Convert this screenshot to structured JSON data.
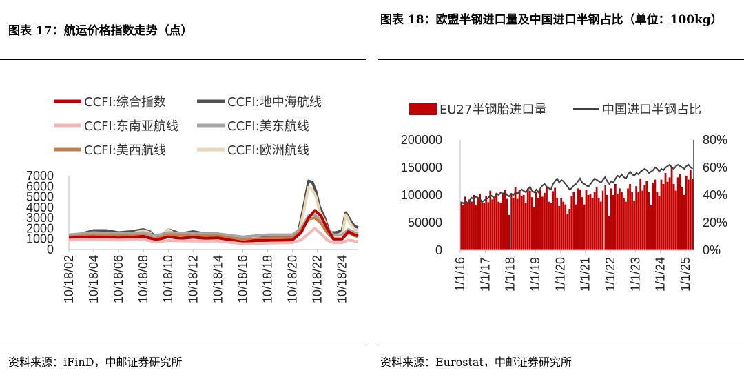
{
  "titles": {
    "left": "图表 17：航运价格指数走势（点）",
    "right": "图表 18：欧盟半钢进口量及中国进口半钢占比（单位：100kg）"
  },
  "sources": {
    "left": "资料来源：iFinD，中邮证券研究所",
    "right": "资料来源：Eurostat，中邮证券研究所"
  },
  "colors": {
    "ccfi_composite": "#c00000",
    "ccfi_med": "#505050",
    "ccfi_sea": "#f2b8b8",
    "ccfi_useast": "#a6a6a6",
    "ccfi_uswest": "#c0804a",
    "ccfi_europe": "#e9d8b4",
    "eu27_bar": "#c00000",
    "china_share_line": "#404040"
  },
  "chart_data": [
    {
      "type": "line",
      "title": "",
      "y_ticks": [
        "0",
        "1000",
        "2000",
        "3000",
        "4000",
        "5000",
        "6000",
        "7000"
      ],
      "ylim": [
        0,
        7000
      ],
      "x_ticks": [
        "10/18/02",
        "10/18/04",
        "10/18/06",
        "10/18/08",
        "10/18/10",
        "10/18/12",
        "10/18/14",
        "10/18/16",
        "10/18/18",
        "10/18/20",
        "10/18/22",
        "10/18/24"
      ],
      "x_years": [
        2002,
        2004,
        2006,
        2008,
        2010,
        2012,
        2014,
        2016,
        2018,
        2020,
        2022,
        2024
      ],
      "xlim": [
        2002,
        2025.3
      ],
      "legend": [
        "CCFI:综合指数",
        "CCFI:地中海航线",
        "CCFI:东南亚航线",
        "CCFI:美东航线",
        "CCFI:美西航线",
        "CCFI:欧洲航线"
      ],
      "series": [
        {
          "name": "CCFI:地中海航线",
          "key": "ccfi_med",
          "x": [
            2002,
            2003,
            2004,
            2005,
            2006,
            2007,
            2008,
            2008.5,
            2009,
            2009.5,
            2010,
            2010.5,
            2011,
            2012,
            2013,
            2014,
            2015,
            2016,
            2017,
            2018,
            2019,
            2020,
            2020.5,
            2020.9,
            2021.3,
            2021.6,
            2021.9,
            2022.2,
            2022.6,
            2023,
            2023.5,
            2024,
            2024.3,
            2024.7,
            2025,
            2025.3
          ],
          "y": [
            1200,
            1500,
            1800,
            1800,
            1600,
            1700,
            1900,
            1700,
            1200,
            1300,
            1900,
            1700,
            1500,
            1700,
            1500,
            1500,
            1200,
            900,
            1300,
            1200,
            1200,
            1300,
            1800,
            4000,
            6500,
            6400,
            5500,
            4000,
            3000,
            1600,
            1600,
            1800,
            3500,
            2700,
            2200,
            2100
          ]
        },
        {
          "name": "CCFI:欧洲航线",
          "key": "ccfi_europe",
          "x": [
            2002,
            2003,
            2004,
            2005,
            2006,
            2007,
            2008,
            2008.5,
            2009,
            2009.5,
            2010,
            2010.5,
            2011,
            2012,
            2013,
            2014,
            2015,
            2016,
            2017,
            2018,
            2019,
            2020,
            2020.5,
            2020.9,
            2021.3,
            2021.6,
            2021.9,
            2022.2,
            2022.6,
            2023,
            2023.5,
            2024,
            2024.3,
            2024.7,
            2025,
            2025.3
          ],
          "y": [
            1100,
            1350,
            1500,
            1450,
            1400,
            1500,
            1800,
            1600,
            1000,
            1200,
            1900,
            1500,
            1300,
            1500,
            1300,
            1300,
            1000,
            800,
            1100,
            1000,
            1000,
            1100,
            1500,
            3500,
            5900,
            5700,
            5000,
            3600,
            2700,
            1300,
            1200,
            1400,
            3300,
            2400,
            1900,
            1800
          ]
        },
        {
          "name": "CCFI:美东航线",
          "key": "ccfi_useast",
          "x": [
            2002,
            2004,
            2006,
            2008,
            2009,
            2010,
            2012,
            2014,
            2016,
            2018,
            2020,
            2020.7,
            2021.3,
            2021.8,
            2022.3,
            2022.8,
            2023.3,
            2024,
            2024.5,
            2025,
            2025.3
          ],
          "y": [
            1400,
            1600,
            1500,
            1600,
            1300,
            1600,
            1500,
            1500,
            1200,
            1400,
            1400,
            2000,
            3200,
            3300,
            2800,
            2000,
            1400,
            1400,
            1900,
            1600,
            1500
          ]
        },
        {
          "name": "CCFI:美西航线",
          "key": "ccfi_uswest",
          "x": [
            2002,
            2004,
            2006,
            2008,
            2009,
            2010,
            2012,
            2014,
            2016,
            2018,
            2020,
            2020.7,
            2021.3,
            2021.8,
            2022.3,
            2022.8,
            2023.3,
            2024,
            2024.5,
            2025,
            2025.3
          ],
          "y": [
            1200,
            1350,
            1300,
            1350,
            1000,
            1400,
            1300,
            1300,
            900,
            1100,
            1100,
            1800,
            2900,
            3000,
            2500,
            1600,
            1000,
            1000,
            1600,
            1300,
            1200
          ]
        },
        {
          "name": "CCFI:综合指数",
          "key": "ccfi_composite",
          "x": [
            2002,
            2003,
            2004,
            2005,
            2006,
            2007,
            2008,
            2009,
            2010,
            2011,
            2012,
            2013,
            2014,
            2015,
            2016,
            2017,
            2018,
            2019,
            2020,
            2020.7,
            2021.3,
            2021.8,
            2022.3,
            2022.8,
            2023.3,
            2024,
            2024.5,
            2025,
            2025.3
          ],
          "y": [
            1100,
            1150,
            1200,
            1150,
            1100,
            1150,
            1250,
            900,
            1200,
            1050,
            1150,
            1050,
            1100,
            900,
            700,
            850,
            850,
            850,
            900,
            1600,
            3000,
            3700,
            3200,
            2000,
            1000,
            1000,
            1700,
            1400,
            1300
          ]
        },
        {
          "name": "CCFI:东南亚航线",
          "key": "ccfi_sea",
          "x": [
            2002,
            2004,
            2006,
            2008,
            2009,
            2010,
            2012,
            2014,
            2016,
            2018,
            2020,
            2020.7,
            2021.3,
            2021.8,
            2022.3,
            2022.8,
            2023.3,
            2024,
            2024.5,
            2025,
            2025.3
          ],
          "y": [
            900,
            950,
            900,
            950,
            700,
            850,
            800,
            800,
            550,
            600,
            650,
            900,
            1500,
            2000,
            1500,
            900,
            650,
            650,
            900,
            800,
            750
          ]
        }
      ]
    },
    {
      "type": "bar+line",
      "title": "",
      "y_ticks_left": [
        "0",
        "50000",
        "100000",
        "150000",
        "200000"
      ],
      "ylim_left": [
        0,
        200000
      ],
      "y_ticks_right": [
        "0%",
        "20%",
        "40%",
        "60%",
        "80%"
      ],
      "ylim_right": [
        0,
        0.8
      ],
      "x_ticks": [
        "1/1/16",
        "1/1/17",
        "1/1/18",
        "1/1/19",
        "1/1/20",
        "1/1/21",
        "1/1/22",
        "1/1/23",
        "1/1/24",
        "1/1/25"
      ],
      "legend": [
        "EU27半钢胎进口量",
        "中国进口半钢占比"
      ],
      "months": 112,
      "start": "2016-01",
      "eu27_imports": [
        88000,
        82000,
        97000,
        85000,
        92000,
        88000,
        100000,
        82000,
        95000,
        102000,
        90000,
        85000,
        98000,
        87000,
        108000,
        92000,
        96000,
        104000,
        88000,
        86000,
        102000,
        110000,
        93000,
        64000,
        102000,
        95000,
        115000,
        93000,
        110000,
        98000,
        100000,
        86000,
        112000,
        108000,
        96000,
        78000,
        105000,
        94000,
        110000,
        97000,
        104000,
        115000,
        88000,
        85000,
        107000,
        113000,
        95000,
        80000,
        95000,
        88000,
        83000,
        65000,
        75000,
        98000,
        106000,
        83000,
        112000,
        110000,
        96000,
        83000,
        110000,
        100000,
        102000,
        94000,
        105000,
        115000,
        95000,
        88000,
        108000,
        118000,
        100000,
        62000,
        112000,
        100000,
        120000,
        102000,
        112000,
        106000,
        95000,
        88000,
        112000,
        120000,
        105000,
        90000,
        116000,
        105000,
        130000,
        108000,
        118000,
        126000,
        105000,
        82000,
        122000,
        128000,
        105000,
        98000,
        128000,
        120000,
        140000,
        124000,
        132000,
        150000,
        120000,
        108000,
        132000,
        138000,
        115000,
        100000,
        135000,
        128000,
        145000,
        130000
      ],
      "china_share": [
        0.35,
        0.34,
        0.36,
        0.34,
        0.36,
        0.38,
        0.37,
        0.39,
        0.38,
        0.37,
        0.35,
        0.36,
        0.37,
        0.38,
        0.4,
        0.39,
        0.38,
        0.41,
        0.4,
        0.42,
        0.41,
        0.42,
        0.4,
        0.39,
        0.41,
        0.4,
        0.42,
        0.41,
        0.43,
        0.44,
        0.43,
        0.42,
        0.44,
        0.46,
        0.43,
        0.42,
        0.44,
        0.42,
        0.45,
        0.47,
        0.48,
        0.46,
        0.45,
        0.44,
        0.48,
        0.5,
        0.52,
        0.49,
        0.51,
        0.5,
        0.48,
        0.46,
        0.44,
        0.45,
        0.47,
        0.48,
        0.5,
        0.52,
        0.49,
        0.48,
        0.47,
        0.46,
        0.48,
        0.5,
        0.52,
        0.51,
        0.5,
        0.49,
        0.51,
        0.53,
        0.5,
        0.48,
        0.5,
        0.49,
        0.52,
        0.54,
        0.53,
        0.55,
        0.53,
        0.52,
        0.55,
        0.57,
        0.55,
        0.54,
        0.56,
        0.55,
        0.57,
        0.58,
        0.59,
        0.58,
        0.56,
        0.57,
        0.58,
        0.6,
        0.59,
        0.57,
        0.59,
        0.58,
        0.6,
        0.61,
        0.62,
        0.6,
        0.59,
        0.61,
        0.62,
        0.61,
        0.6,
        0.59,
        0.61,
        0.62,
        0.6,
        0.59
      ]
    }
  ]
}
